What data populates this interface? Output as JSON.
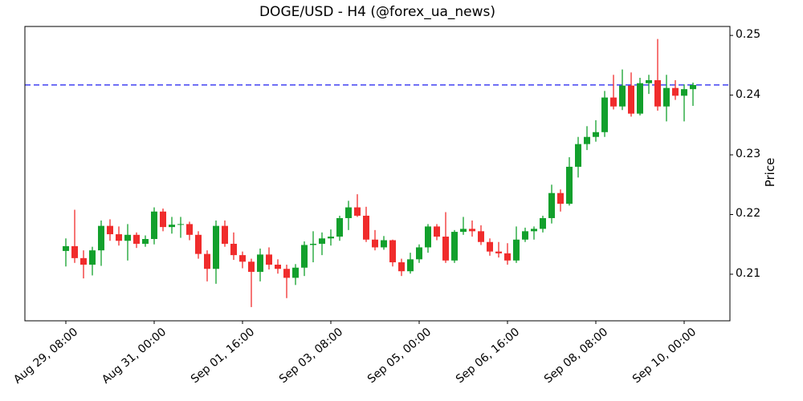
{
  "title": "DOGE/USD - H4 (@forex_ua_news)",
  "colors": {
    "up": "#12a02c",
    "down": "#f02c2c",
    "hline": "#0000ee",
    "axis": "#000000",
    "background": "#ffffff"
  },
  "axes": {
    "y_label": "Price",
    "y_ticks": [
      {
        "value": 0.25,
        "label": "0.25"
      },
      {
        "value": 0.24,
        "label": "0.24"
      },
      {
        "value": 0.23,
        "label": "0.23"
      },
      {
        "value": 0.22,
        "label": "0.22"
      },
      {
        "value": 0.21,
        "label": "0.21"
      }
    ],
    "x_ticks": [
      {
        "index": 0,
        "label": "Aug 29, 08:00"
      },
      {
        "index": 10,
        "label": "Aug 31, 00:00"
      },
      {
        "index": 20,
        "label": "Sep 01, 16:00"
      },
      {
        "index": 30,
        "label": "Sep 03, 08:00"
      },
      {
        "index": 40,
        "label": "Sep 05, 00:00"
      },
      {
        "index": 50,
        "label": "Sep 06, 16:00"
      },
      {
        "index": 60,
        "label": "Sep 08, 08:00"
      },
      {
        "index": 70,
        "label": "Sep 10, 00:00"
      }
    ]
  },
  "chart_data": {
    "type": "candlestick",
    "symbol": "DOGE/USD",
    "timeframe": "H4",
    "source_handle": "@forex_ua_news",
    "ylim": [
      0.2022,
      0.2515
    ],
    "grid": false,
    "horizontal_line": {
      "price": 0.2417,
      "style": "dashed"
    },
    "columns": [
      "time",
      "open",
      "high",
      "low",
      "close"
    ],
    "candles": [
      [
        "Aug 29, 08:00",
        0.2139,
        0.216,
        0.2113,
        0.2147
      ],
      [
        "Aug 29, 12:00",
        0.2147,
        0.2208,
        0.2119,
        0.2127
      ],
      [
        "Aug 29, 16:00",
        0.2127,
        0.214,
        0.2093,
        0.2116
      ],
      [
        "Aug 29, 20:00",
        0.2116,
        0.2146,
        0.2098,
        0.214
      ],
      [
        "Aug 30, 00:00",
        0.214,
        0.219,
        0.2114,
        0.2181
      ],
      [
        "Aug 30, 04:00",
        0.2181,
        0.2192,
        0.2156,
        0.2167
      ],
      [
        "Aug 30, 08:00",
        0.2167,
        0.218,
        0.2148,
        0.2156
      ],
      [
        "Aug 30, 12:00",
        0.2156,
        0.2184,
        0.2123,
        0.2166
      ],
      [
        "Aug 30, 16:00",
        0.2166,
        0.217,
        0.2144,
        0.2151
      ],
      [
        "Aug 30, 20:00",
        0.2151,
        0.2165,
        0.2146,
        0.2159
      ],
      [
        "Aug 31, 00:00",
        0.2159,
        0.2212,
        0.215,
        0.2205
      ],
      [
        "Aug 31, 04:00",
        0.2205,
        0.221,
        0.2172,
        0.2179
      ],
      [
        "Aug 31, 08:00",
        0.2179,
        0.2196,
        0.2168,
        0.2183
      ],
      [
        "Aug 31, 12:00",
        0.2183,
        0.2196,
        0.2161,
        0.2184
      ],
      [
        "Aug 31, 16:00",
        0.2184,
        0.2188,
        0.2157,
        0.2166
      ],
      [
        "Aug 31, 20:00",
        0.2166,
        0.2172,
        0.2126,
        0.2134
      ],
      [
        "Sep 01, 00:00",
        0.2134,
        0.214,
        0.2088,
        0.2109
      ],
      [
        "Sep 01, 04:00",
        0.2109,
        0.219,
        0.2084,
        0.2181
      ],
      [
        "Sep 01, 08:00",
        0.2181,
        0.219,
        0.2146,
        0.2151
      ],
      [
        "Sep 01, 12:00",
        0.2151,
        0.217,
        0.2124,
        0.2132
      ],
      [
        "Sep 01, 16:00",
        0.2132,
        0.2138,
        0.211,
        0.2121
      ],
      [
        "Sep 01, 20:00",
        0.2121,
        0.2126,
        0.2045,
        0.2104
      ],
      [
        "Sep 02, 00:00",
        0.2104,
        0.2143,
        0.2088,
        0.2133
      ],
      [
        "Sep 02, 04:00",
        0.2133,
        0.2145,
        0.2108,
        0.2116
      ],
      [
        "Sep 02, 08:00",
        0.2116,
        0.2125,
        0.2101,
        0.2109
      ],
      [
        "Sep 02, 12:00",
        0.2109,
        0.2116,
        0.206,
        0.2094
      ],
      [
        "Sep 02, 16:00",
        0.2094,
        0.2117,
        0.2082,
        0.2111
      ],
      [
        "Sep 02, 20:00",
        0.2111,
        0.2155,
        0.2097,
        0.2149
      ],
      [
        "Sep 03, 00:00",
        0.2149,
        0.2172,
        0.212,
        0.2151
      ],
      [
        "Sep 03, 04:00",
        0.2151,
        0.217,
        0.2132,
        0.216
      ],
      [
        "Sep 03, 08:00",
        0.216,
        0.2175,
        0.2148,
        0.2163
      ],
      [
        "Sep 03, 12:00",
        0.2163,
        0.2198,
        0.2156,
        0.2194
      ],
      [
        "Sep 03, 16:00",
        0.2194,
        0.2223,
        0.2174,
        0.2212
      ],
      [
        "Sep 03, 20:00",
        0.2212,
        0.2234,
        0.2196,
        0.2198
      ],
      [
        "Sep 04, 00:00",
        0.2198,
        0.2213,
        0.2154,
        0.2158
      ],
      [
        "Sep 04, 04:00",
        0.2158,
        0.2174,
        0.214,
        0.2145
      ],
      [
        "Sep 04, 08:00",
        0.2145,
        0.2164,
        0.2141,
        0.2157
      ],
      [
        "Sep 04, 12:00",
        0.2157,
        0.2158,
        0.2113,
        0.212
      ],
      [
        "Sep 04, 16:00",
        0.212,
        0.2126,
        0.2097,
        0.2105
      ],
      [
        "Sep 04, 20:00",
        0.2105,
        0.2136,
        0.2101,
        0.2125
      ],
      [
        "Sep 05, 00:00",
        0.2125,
        0.215,
        0.2119,
        0.2145
      ],
      [
        "Sep 05, 04:00",
        0.2145,
        0.2184,
        0.2136,
        0.218
      ],
      [
        "Sep 05, 08:00",
        0.218,
        0.2184,
        0.2157,
        0.2163
      ],
      [
        "Sep 05, 12:00",
        0.2163,
        0.2204,
        0.2119,
        0.2123
      ],
      [
        "Sep 05, 16:00",
        0.2123,
        0.2174,
        0.2119,
        0.2171
      ],
      [
        "Sep 05, 20:00",
        0.2171,
        0.2196,
        0.2166,
        0.2176
      ],
      [
        "Sep 06, 00:00",
        0.2176,
        0.219,
        0.2163,
        0.2172
      ],
      [
        "Sep 06, 04:00",
        0.2172,
        0.2182,
        0.2149,
        0.2154
      ],
      [
        "Sep 06, 08:00",
        0.2154,
        0.216,
        0.2131,
        0.2138
      ],
      [
        "Sep 06, 12:00",
        0.2138,
        0.2154,
        0.2128,
        0.2135
      ],
      [
        "Sep 06, 16:00",
        0.2135,
        0.2152,
        0.2116,
        0.2123
      ],
      [
        "Sep 06, 20:00",
        0.2123,
        0.218,
        0.2119,
        0.2158
      ],
      [
        "Sep 07, 00:00",
        0.2158,
        0.2178,
        0.2154,
        0.2172
      ],
      [
        "Sep 07, 04:00",
        0.2172,
        0.218,
        0.2158,
        0.2176
      ],
      [
        "Sep 07, 08:00",
        0.2176,
        0.2198,
        0.217,
        0.2194
      ],
      [
        "Sep 07, 12:00",
        0.2194,
        0.225,
        0.2185,
        0.2236
      ],
      [
        "Sep 07, 16:00",
        0.2236,
        0.2242,
        0.2205,
        0.2218
      ],
      [
        "Sep 07, 20:00",
        0.2218,
        0.2296,
        0.2215,
        0.228
      ],
      [
        "Sep 08, 00:00",
        0.228,
        0.233,
        0.2262,
        0.2318
      ],
      [
        "Sep 08, 04:00",
        0.2318,
        0.2348,
        0.2308,
        0.233
      ],
      [
        "Sep 08, 08:00",
        0.233,
        0.2358,
        0.2322,
        0.2338
      ],
      [
        "Sep 08, 12:00",
        0.2338,
        0.2407,
        0.233,
        0.2396
      ],
      [
        "Sep 08, 16:00",
        0.2396,
        0.2434,
        0.2376,
        0.2381
      ],
      [
        "Sep 08, 20:00",
        0.2381,
        0.2443,
        0.2375,
        0.2416
      ],
      [
        "Sep 09, 00:00",
        0.2416,
        0.2438,
        0.2364,
        0.2369
      ],
      [
        "Sep 09, 04:00",
        0.2369,
        0.2429,
        0.2366,
        0.242
      ],
      [
        "Sep 09, 08:00",
        0.242,
        0.2434,
        0.2402,
        0.2425
      ],
      [
        "Sep 09, 12:00",
        0.2425,
        0.2494,
        0.2374,
        0.2381
      ],
      [
        "Sep 09, 16:00",
        0.2381,
        0.2434,
        0.2356,
        0.2412
      ],
      [
        "Sep 09, 20:00",
        0.2412,
        0.2425,
        0.2392,
        0.2399
      ],
      [
        "Sep 10, 00:00",
        0.2399,
        0.2418,
        0.2356,
        0.241
      ],
      [
        "Sep 10, 04:00",
        0.241,
        0.2421,
        0.2382,
        0.2417
      ]
    ]
  }
}
